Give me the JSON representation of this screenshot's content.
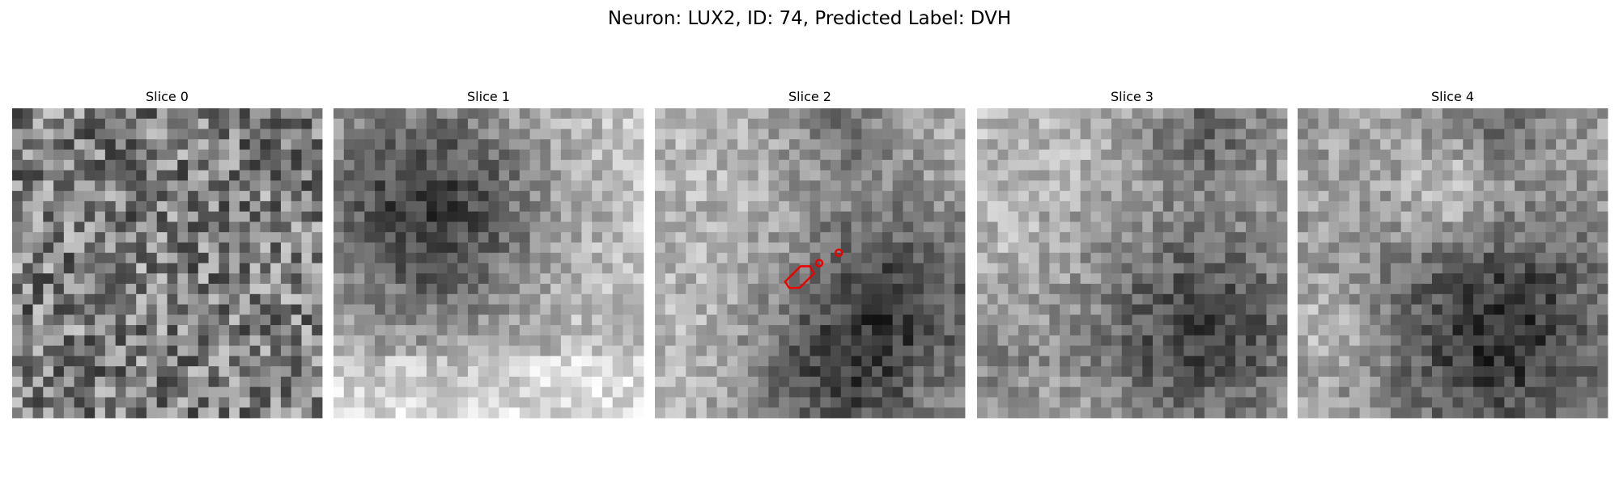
{
  "header": {
    "title": "Neuron: LUX2, ID: 74, Predicted Label: DVH"
  },
  "slices": [
    {
      "title": "Slice 0"
    },
    {
      "title": "Slice 1"
    },
    {
      "title": "Slice 2"
    },
    {
      "title": "Slice 3"
    },
    {
      "title": "Slice 4"
    }
  ]
}
